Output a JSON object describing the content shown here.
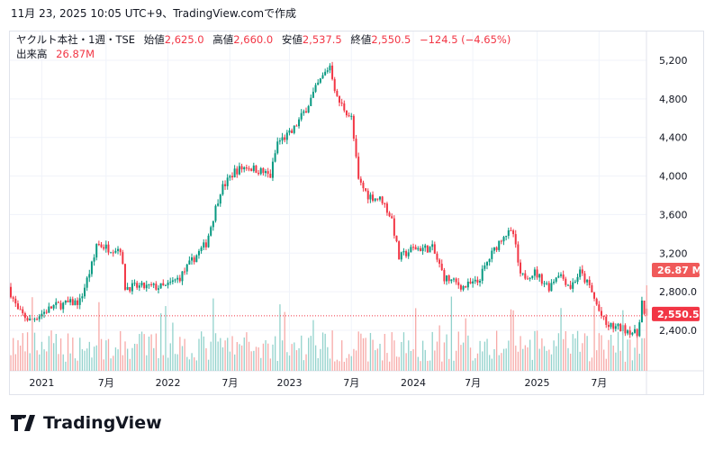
{
  "caption": "11月 23, 2025 10:05 UTC+9、TradingView.comで作成",
  "legend": {
    "symbol": "ヤクルト本社・1週・TSE",
    "open_label": "始値",
    "open": "2,625.0",
    "high_label": "高値",
    "high": "2,660.0",
    "low_label": "安値",
    "low": "2,537.5",
    "close_label": "終値",
    "close": "2,550.5",
    "change": "−124.5 (−4.65%)",
    "volume_label": "出来高",
    "volume": "26.87M"
  },
  "logo": "TradingView",
  "colors": {
    "up": "#089981",
    "down": "#f23645",
    "up_vol": "#92d2cc",
    "down_vol": "#f7a9a7"
  },
  "chart_data": {
    "type": "candlestick",
    "interval": "1 week",
    "ylim": [
      2100,
      5500
    ],
    "y_ticks": [
      "5,200",
      "4,800",
      "4,400",
      "4,000",
      "3,600",
      "3,200",
      "2,800.0",
      "2,400.0"
    ],
    "y_tick_values": [
      5200,
      4800,
      4400,
      4000,
      3600,
      3200,
      2800,
      2400
    ],
    "x_ticks": [
      {
        "label": "2021",
        "week": 13
      },
      {
        "label": "7月",
        "week": 40
      },
      {
        "label": "2022",
        "week": 66
      },
      {
        "label": "7月",
        "week": 92
      },
      {
        "label": "2023",
        "week": 117
      },
      {
        "label": "7月",
        "week": 143
      },
      {
        "label": "2024",
        "week": 169
      },
      {
        "label": "7月",
        "week": 194
      },
      {
        "label": "2025",
        "week": 221
      },
      {
        "label": "7月",
        "week": 247
      }
    ],
    "close_path_anchors": [
      [
        0,
        2850
      ],
      [
        4,
        2600
      ],
      [
        9,
        2500
      ],
      [
        19,
        2650
      ],
      [
        30,
        2700
      ],
      [
        36,
        3150
      ],
      [
        37,
        3300
      ],
      [
        42,
        3250
      ],
      [
        47,
        3250
      ],
      [
        49,
        2850
      ],
      [
        60,
        2850
      ],
      [
        66,
        2850
      ],
      [
        72,
        2950
      ],
      [
        78,
        3150
      ],
      [
        83,
        3300
      ],
      [
        89,
        3850
      ],
      [
        95,
        4050
      ],
      [
        100,
        4100
      ],
      [
        106,
        4050
      ],
      [
        110,
        4000
      ],
      [
        113,
        4350
      ],
      [
        119,
        4450
      ],
      [
        125,
        4700
      ],
      [
        130,
        4950
      ],
      [
        135,
        5150
      ],
      [
        138,
        4800
      ],
      [
        144,
        4600
      ],
      [
        147,
        3950
      ],
      [
        151,
        3800
      ],
      [
        157,
        3750
      ],
      [
        161,
        3550
      ],
      [
        164,
        3150
      ],
      [
        170,
        3250
      ],
      [
        178,
        3250
      ],
      [
        183,
        2950
      ],
      [
        191,
        2850
      ],
      [
        197,
        2900
      ],
      [
        202,
        3150
      ],
      [
        208,
        3400
      ],
      [
        212,
        3400
      ],
      [
        215,
        2950
      ],
      [
        221,
        3000
      ],
      [
        227,
        2850
      ],
      [
        231,
        3000
      ],
      [
        236,
        2850
      ],
      [
        240,
        3000
      ],
      [
        244,
        2850
      ],
      [
        248,
        2600
      ],
      [
        251,
        2450
      ],
      [
        261,
        2400
      ],
      [
        264,
        2350
      ],
      [
        266,
        2700
      ],
      [
        267,
        2550.5
      ]
    ],
    "last_candle": {
      "open": 2625.0,
      "high": 2660.0,
      "low": 2537.5,
      "close": 2550.5,
      "volume": "26.87M"
    },
    "last_price_label": "2,550.5",
    "volume_label": "26.87 M"
  }
}
